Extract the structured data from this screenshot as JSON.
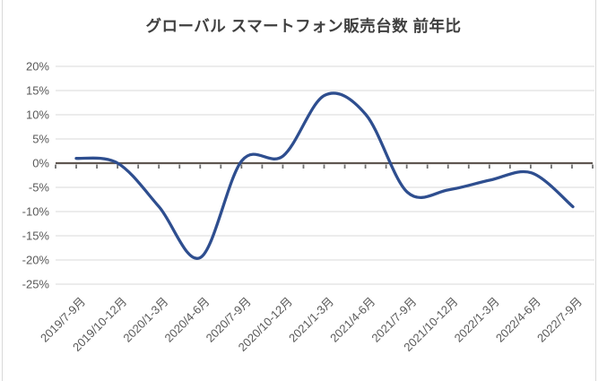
{
  "chart_data": {
    "type": "line",
    "title": "グローバル スマートフォン販売台数 前年比",
    "categories": [
      "2019/7-9月",
      "2019/10-12月",
      "2020/1-3月",
      "2020/4-6月",
      "2020/7-9月",
      "2020/10-12月",
      "2021/1-3月",
      "2021/4-6月",
      "2021/7-9月",
      "2021/10-12月",
      "2022/1-3月",
      "2022/4-6月",
      "2022/7-9月"
    ],
    "values": [
      1,
      0,
      -9,
      -19.5,
      0.5,
      1.5,
      14,
      10,
      -6,
      -5.5,
      -3.5,
      -2,
      -9
    ],
    "unit": "%",
    "xlabel": "",
    "ylabel": "",
    "ylim": [
      -25,
      20
    ],
    "y_ticks": [
      "20%",
      "15%",
      "10%",
      "5%",
      "0%",
      "-5%",
      "-10%",
      "-15%",
      "-20%",
      "-25%"
    ],
    "y_tick_values": [
      20,
      15,
      10,
      5,
      0,
      -5,
      -10,
      -15,
      -20,
      -25
    ],
    "grid": true,
    "legend": "none",
    "smooth": true,
    "colors": {
      "line": "#2e4e8f",
      "axis": "#5f5751",
      "ticks": "#6e6e6e",
      "gridline": "#d9d9d9",
      "labels": "#595959",
      "title": "#3f3f3f"
    }
  }
}
